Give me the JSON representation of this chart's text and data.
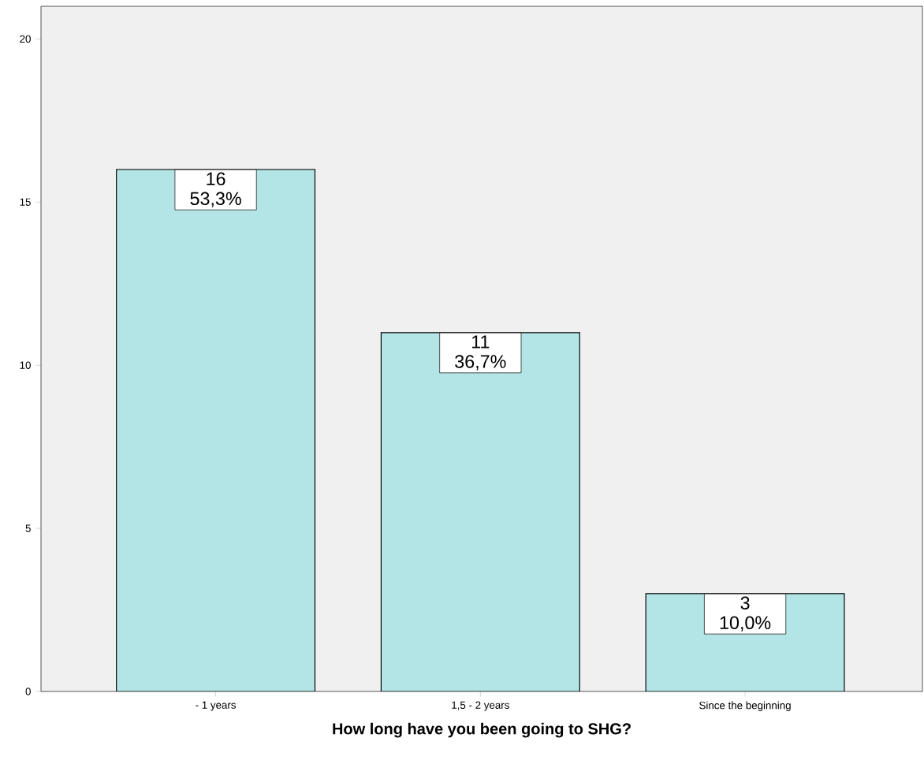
{
  "chart_data": {
    "type": "bar",
    "xlabel": "How long have you been going to SHG?",
    "categories": [
      "- 1 years",
      "1,5 - 2 years",
      "Since the beginning"
    ],
    "values": [
      16,
      11,
      3
    ],
    "color": "#b3e5e6",
    "value_labels": [
      "16 53,3%",
      "11 36,7%",
      "3 10,0%"
    ],
    "ylim": [
      0,
      21
    ],
    "yticks": [
      0,
      5,
      10,
      15,
      20
    ]
  }
}
